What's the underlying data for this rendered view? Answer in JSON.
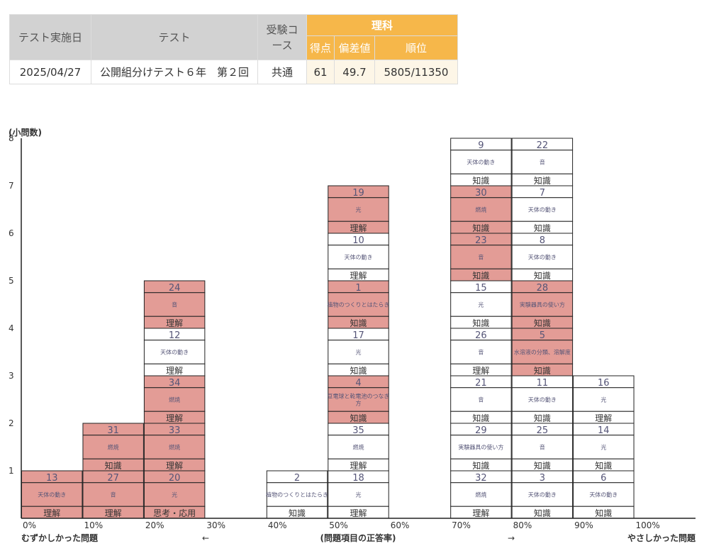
{
  "table": {
    "headers": {
      "date": "テスト実施日",
      "test": "テスト",
      "course": "受験コース",
      "subject": "理科",
      "score": "得点",
      "deviation": "偏差値",
      "rank": "順位"
    },
    "row": {
      "date": "2025/04/27",
      "test": "公開組分けテスト６年　第２回",
      "course": "共通",
      "score": "61",
      "deviation": "49.7",
      "rank": "5805/11350"
    }
  },
  "chart_data": {
    "type": "stacked-blocks",
    "ylabel": "(小問数)",
    "ylim": [
      0,
      8
    ],
    "yticks": [
      "1",
      "2",
      "3",
      "4",
      "5",
      "6",
      "7",
      "8"
    ],
    "xlim": [
      0,
      110
    ],
    "xticks": [
      "0%",
      "10%",
      "20%",
      "30%",
      "40%",
      "50%",
      "60%",
      "70%",
      "80%",
      "90%",
      "100%"
    ],
    "xlabel": "(問題項目の正答率)",
    "left_label": "むずかしかった問題",
    "right_label": "やさしかった問題",
    "arrow_left": "←",
    "arrow_right": "→",
    "colors": {
      "wrong": "#e39c96",
      "correct": "#ffffff",
      "border": "#222222"
    },
    "columns": [
      {
        "bin": 0,
        "items": [
          {
            "no": "13",
            "topic": "天体の動き",
            "type": "理解",
            "wrong": true
          }
        ]
      },
      {
        "bin": 10,
        "items": [
          {
            "no": "27",
            "topic": "音",
            "type": "理解",
            "wrong": true
          },
          {
            "no": "31",
            "topic": "燃焼",
            "type": "知識",
            "wrong": true
          }
        ]
      },
      {
        "bin": 20,
        "items": [
          {
            "no": "20",
            "topic": "光",
            "type": "思考・応用",
            "wrong": true
          },
          {
            "no": "33",
            "topic": "燃焼",
            "type": "理解",
            "wrong": true
          },
          {
            "no": "34",
            "topic": "燃焼",
            "type": "理解",
            "wrong": true
          },
          {
            "no": "12",
            "topic": "天体の動き",
            "type": "理解",
            "wrong": false
          },
          {
            "no": "24",
            "topic": "音",
            "type": "理解",
            "wrong": true
          }
        ]
      },
      {
        "bin": 40,
        "items": [
          {
            "no": "2",
            "topic": "植物のつくりとはたらき",
            "type": "知識",
            "wrong": false
          }
        ]
      },
      {
        "bin": 50,
        "items": [
          {
            "no": "18",
            "topic": "光",
            "type": "理解",
            "wrong": false
          },
          {
            "no": "35",
            "topic": "燃焼",
            "type": "理解",
            "wrong": false
          },
          {
            "no": "4",
            "topic": "豆電球と乾電池のつなぎ方",
            "type": "知識",
            "wrong": true
          },
          {
            "no": "17",
            "topic": "光",
            "type": "知識",
            "wrong": false
          },
          {
            "no": "1",
            "topic": "植物のつくりとはたらき",
            "type": "知識",
            "wrong": true
          },
          {
            "no": "10",
            "topic": "天体の動き",
            "type": "理解",
            "wrong": false
          },
          {
            "no": "19",
            "topic": "光",
            "type": "理解",
            "wrong": true
          }
        ]
      },
      {
        "bin": 70,
        "items": [
          {
            "no": "32",
            "topic": "燃焼",
            "type": "理解",
            "wrong": false
          },
          {
            "no": "29",
            "topic": "実験器具の使い方",
            "type": "知識",
            "wrong": false
          },
          {
            "no": "21",
            "topic": "音",
            "type": "知識",
            "wrong": false
          },
          {
            "no": "26",
            "topic": "音",
            "type": "理解",
            "wrong": false
          },
          {
            "no": "15",
            "topic": "光",
            "type": "知識",
            "wrong": false
          },
          {
            "no": "23",
            "topic": "音",
            "type": "知識",
            "wrong": true
          },
          {
            "no": "30",
            "topic": "燃焼",
            "type": "知識",
            "wrong": true
          },
          {
            "no": "9",
            "topic": "天体の動き",
            "type": "知識",
            "wrong": false
          }
        ]
      },
      {
        "bin": 80,
        "items": [
          {
            "no": "3",
            "topic": "天体の動き",
            "type": "知識",
            "wrong": false
          },
          {
            "no": "25",
            "topic": "音",
            "type": "知識",
            "wrong": false
          },
          {
            "no": "11",
            "topic": "天体の動き",
            "type": "知識",
            "wrong": false
          },
          {
            "no": "5",
            "topic": "水溶液の分類、溶解度",
            "type": "知識",
            "wrong": true
          },
          {
            "no": "28",
            "topic": "実験器具の使い方",
            "type": "知識",
            "wrong": true
          },
          {
            "no": "8",
            "topic": "天体の動き",
            "type": "知識",
            "wrong": false
          },
          {
            "no": "7",
            "topic": "天体の動き",
            "type": "知識",
            "wrong": false
          },
          {
            "no": "22",
            "topic": "音",
            "type": "知識",
            "wrong": false
          }
        ]
      },
      {
        "bin": 90,
        "items": [
          {
            "no": "6",
            "topic": "天体の動き",
            "type": "知識",
            "wrong": false
          },
          {
            "no": "14",
            "topic": "光",
            "type": "知識",
            "wrong": false
          },
          {
            "no": "16",
            "topic": "光",
            "type": "理解",
            "wrong": false
          }
        ]
      }
    ]
  }
}
